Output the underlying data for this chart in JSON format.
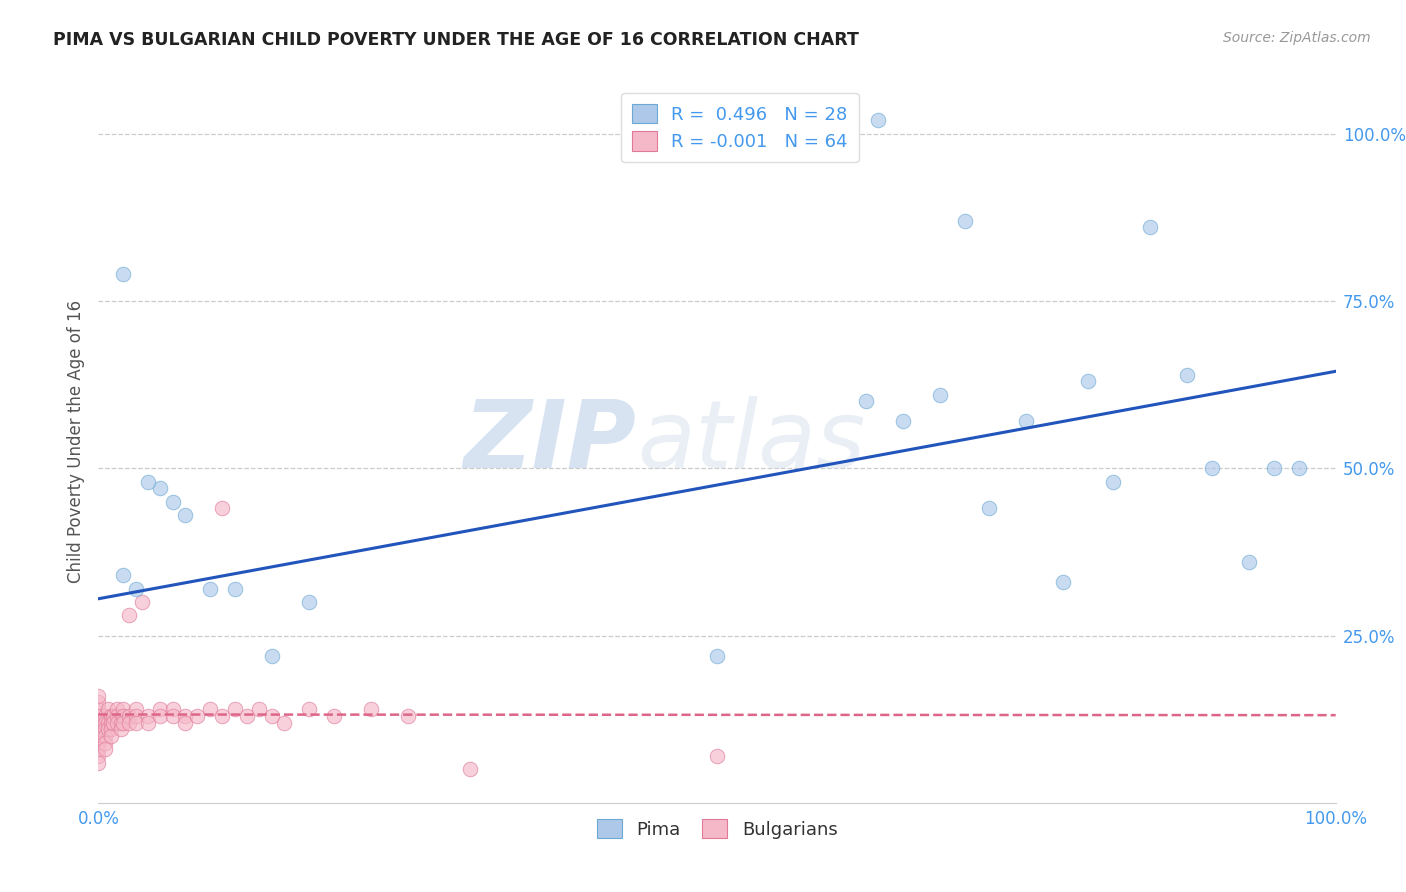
{
  "title": "PIMA VS BULGARIAN CHILD POVERTY UNDER THE AGE OF 16 CORRELATION CHART",
  "source": "Source: ZipAtlas.com",
  "ylabel": "Child Poverty Under the Age of 16",
  "watermark_zip": "ZIP",
  "watermark_atlas": "atlas",
  "pima_color": "#adc8e8",
  "pima_edge_color": "#6aaad4",
  "bulgarian_color": "#f5b8c8",
  "bulgarian_edge_color": "#e07898",
  "pima_line_color": "#2255bb",
  "bulgarian_line_color": "#dd6688",
  "tick_color": "#4499ee",
  "pima_R": "0.496",
  "pima_N": "28",
  "bulgarian_R": "-0.001",
  "bulgarian_N": "64",
  "pima_scatter_x": [
    0.02,
    0.03,
    0.05,
    0.07,
    0.09,
    0.11,
    0.14,
    0.17,
    0.02,
    0.04,
    0.06,
    0.5,
    0.62,
    0.65,
    0.68,
    0.72,
    0.75,
    0.78,
    0.82,
    0.85,
    0.88,
    0.9,
    0.93,
    0.95,
    0.97,
    0.63,
    0.7,
    0.8
  ],
  "pima_scatter_y": [
    0.34,
    0.32,
    0.47,
    0.43,
    0.32,
    0.32,
    0.22,
    0.3,
    0.79,
    0.48,
    0.45,
    0.22,
    0.6,
    0.57,
    0.61,
    0.44,
    0.57,
    0.33,
    0.48,
    0.86,
    0.64,
    0.5,
    0.36,
    0.5,
    0.5,
    1.02,
    0.87,
    0.63
  ],
  "bulgarian_scatter_x": [
    0.0,
    0.0,
    0.0,
    0.0,
    0.0,
    0.0,
    0.0,
    0.0,
    0.0,
    0.0,
    0.0,
    0.005,
    0.005,
    0.005,
    0.005,
    0.005,
    0.005,
    0.008,
    0.008,
    0.008,
    0.01,
    0.01,
    0.01,
    0.01,
    0.012,
    0.012,
    0.015,
    0.015,
    0.015,
    0.018,
    0.018,
    0.02,
    0.02,
    0.02,
    0.025,
    0.025,
    0.025,
    0.03,
    0.03,
    0.03,
    0.035,
    0.04,
    0.04,
    0.05,
    0.05,
    0.06,
    0.06,
    0.07,
    0.07,
    0.08,
    0.09,
    0.1,
    0.1,
    0.11,
    0.12,
    0.13,
    0.14,
    0.15,
    0.17,
    0.19,
    0.22,
    0.25,
    0.3,
    0.5
  ],
  "bulgarian_scatter_y": [
    0.13,
    0.12,
    0.14,
    0.11,
    0.1,
    0.09,
    0.08,
    0.07,
    0.06,
    0.15,
    0.16,
    0.13,
    0.12,
    0.11,
    0.1,
    0.09,
    0.08,
    0.14,
    0.12,
    0.11,
    0.13,
    0.12,
    0.11,
    0.1,
    0.13,
    0.12,
    0.14,
    0.13,
    0.12,
    0.12,
    0.11,
    0.14,
    0.13,
    0.12,
    0.28,
    0.13,
    0.12,
    0.14,
    0.13,
    0.12,
    0.3,
    0.13,
    0.12,
    0.14,
    0.13,
    0.14,
    0.13,
    0.13,
    0.12,
    0.13,
    0.14,
    0.44,
    0.13,
    0.14,
    0.13,
    0.14,
    0.13,
    0.12,
    0.14,
    0.13,
    0.14,
    0.13,
    0.05,
    0.07
  ],
  "pima_line_x": [
    0.0,
    1.0
  ],
  "pima_line_y": [
    0.305,
    0.645
  ],
  "bulgarian_line_x": [
    0.0,
    1.0
  ],
  "bulgarian_line_y": [
    0.132,
    0.131
  ],
  "grid_color": "#cccccc",
  "background_color": "#ffffff",
  "marker_size": 110,
  "alpha": 0.65,
  "xlim": [
    0.0,
    1.0
  ],
  "ylim": [
    0.0,
    1.08
  ],
  "yticks": [
    0.25,
    0.5,
    0.75,
    1.0
  ],
  "ytick_labels": [
    "25.0%",
    "50.0%",
    "75.0%",
    "100.0%"
  ],
  "xticks": [
    0.0,
    0.25,
    0.5,
    0.75,
    1.0
  ],
  "xtick_labels": [
    "0.0%",
    "",
    "",
    "",
    "100.0%"
  ]
}
